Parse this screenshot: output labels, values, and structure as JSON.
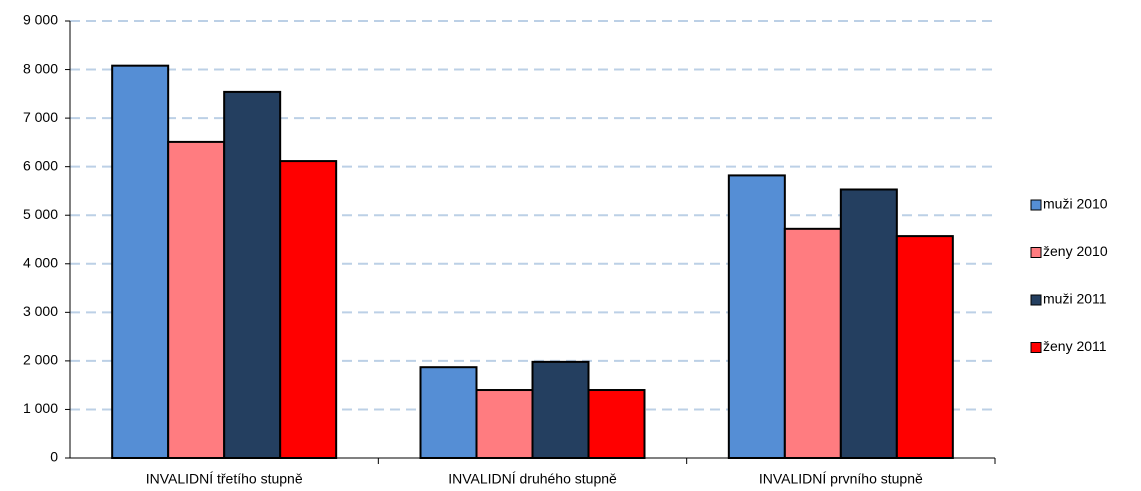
{
  "chart_data": {
    "type": "bar",
    "categories": [
      "INVALIDNÍ třetího stupně",
      "INVALIDNÍ druhého stupně",
      "INVALIDNÍ prvního stupně"
    ],
    "series": [
      {
        "name": "muži 2010",
        "color": "#558ed5",
        "values": [
          8080,
          1870,
          5820
        ]
      },
      {
        "name": "ženy 2010",
        "color": "#ff7c80",
        "values": [
          6510,
          1400,
          4720
        ]
      },
      {
        "name": "muži 2011",
        "color": "#243f60",
        "values": [
          7540,
          1980,
          5530
        ]
      },
      {
        "name": "ženy 2011",
        "color": "#ff0000",
        "values": [
          6115,
          1400,
          4570
        ]
      }
    ],
    "ylim": [
      0,
      9000
    ],
    "yticks": [
      0,
      {
        "value": 1000,
        "label": "1 000"
      },
      {
        "value": 2000,
        "label": "2 000"
      },
      {
        "value": 3000,
        "label": "3 000"
      },
      {
        "value": 4000,
        "label": "4 000"
      },
      {
        "value": 5000,
        "label": "5 000"
      },
      {
        "value": 6000,
        "label": "6 000"
      },
      {
        "value": 7000,
        "label": "7 000"
      },
      {
        "value": 8000,
        "label": "8 000"
      },
      {
        "value": 9000,
        "label": "9 000"
      }
    ],
    "grid": true,
    "legend": "right"
  }
}
